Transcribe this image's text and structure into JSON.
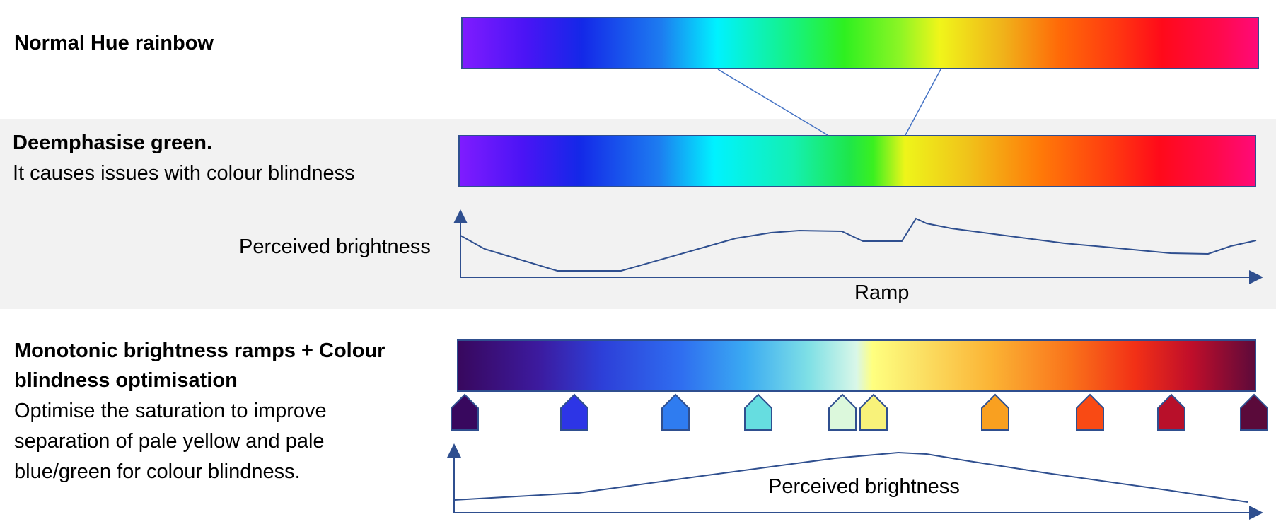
{
  "section_normal": {
    "title": "Normal Hue rainbow"
  },
  "section_deemphasise": {
    "title": "Deemphasise green.",
    "subtitle": "It causes issues with colour blindness",
    "graph_ylabel": "Perceived brightness",
    "graph_xlabel": "Ramp"
  },
  "section_monotonic": {
    "title_line1": "Monotonic brightness ramps + Colour",
    "title_line2": "blindness optimisation",
    "body_line1": "Optimise the saturation to improve",
    "body_line2": "separation of pale yellow and pale",
    "body_line3": "blue/green for colour blindness.",
    "graph_label": "Perceived brightness"
  },
  "colors": {
    "axis": "#2f4f8f",
    "band": "#f2f2f2",
    "connector": "#4472c4"
  },
  "markers": [
    {
      "color": "#38085e"
    },
    {
      "color": "#2d35e6"
    },
    {
      "color": "#2f7cf0"
    },
    {
      "color": "#66dde0"
    },
    {
      "color": "#dcf8dc"
    },
    {
      "color": "#f8f27a"
    },
    {
      "color": "#f9a020"
    },
    {
      "color": "#f94a14"
    },
    {
      "color": "#b8102a"
    },
    {
      "color": "#5a0a3a"
    }
  ]
}
